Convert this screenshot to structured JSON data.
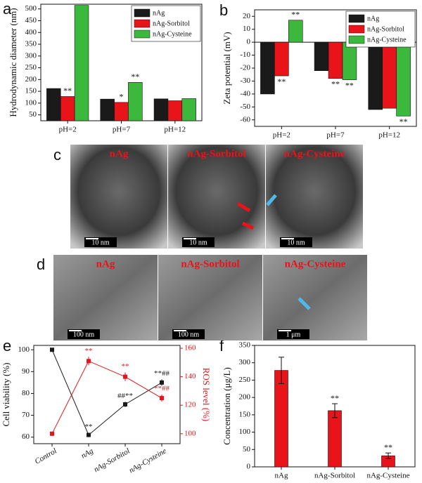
{
  "chart_data": [
    {
      "type": "bar",
      "panel": "a",
      "y_label": "Hydrodynamic diameter (nm)",
      "categories": [
        "pH=2",
        "pH=7",
        "pH=12"
      ],
      "series": [
        {
          "name": "nAg",
          "color": "#1a1a1a",
          "values": [
            162,
            117,
            118
          ],
          "significance": [
            null,
            null,
            null
          ]
        },
        {
          "name": "nAg-Sorbitol",
          "color": "#e8141a",
          "values": [
            128,
            103,
            110
          ],
          "significance": [
            "**",
            "*",
            null
          ]
        },
        {
          "name": "nAg-Cysteine",
          "color": "#3cb83c",
          "values": [
            515,
            188,
            119
          ],
          "significance": [
            "**",
            "**",
            null
          ]
        }
      ],
      "ylim": [
        25,
        520
      ],
      "yticks": [
        50,
        100,
        150,
        200,
        250,
        300,
        350,
        400,
        450,
        500
      ],
      "legend": "upper right"
    },
    {
      "type": "bar",
      "panel": "b",
      "y_label": "Zeta potential (mV)",
      "categories": [
        "pH=2",
        "pH=7",
        "pH=12"
      ],
      "series": [
        {
          "name": "nAg",
          "color": "#1a1a1a",
          "values": [
            -40,
            -22,
            -52
          ],
          "significance": [
            null,
            null,
            null
          ]
        },
        {
          "name": "nAg-Sorbitol",
          "color": "#e8141a",
          "values": [
            -26,
            -28,
            -51
          ],
          "significance": [
            "**",
            "**",
            null
          ]
        },
        {
          "name": "nAg-Cysteine",
          "color": "#3cb83c",
          "values": [
            17,
            -29,
            -57
          ],
          "significance": [
            "**",
            "**",
            "**"
          ]
        }
      ],
      "ylim": [
        -65,
        25
      ],
      "yticks": [
        -60,
        -50,
        -40,
        -30,
        -20,
        -10,
        0,
        10,
        20
      ],
      "legend": "upper right"
    },
    {
      "type": "line",
      "panel": "e",
      "y_label": "Cell viability (%)",
      "y2_label": "ROS level (%)",
      "categories": [
        "Control",
        "nAg",
        "nAg-Sorbitol",
        "nAg-Cysteine"
      ],
      "series": [
        {
          "color": "#1a1a1a",
          "values": [
            100,
            61,
            75,
            85
          ],
          "errors": [
            0.6,
            1,
            1.2,
            1.5
          ],
          "significance": [
            null,
            "**",
            "##**",
            "**##"
          ]
        },
        {
          "color": "#e8141a",
          "axis": "y2",
          "values": [
            100,
            151,
            140,
            125
          ],
          "errors": [
            1.5,
            3,
            3,
            2.5
          ],
          "significance": [
            null,
            "**",
            "**",
            "**##"
          ]
        }
      ],
      "ylim": [
        57,
        102
      ],
      "yticks": [
        60,
        70,
        80,
        90,
        100
      ],
      "y2lim": [
        93,
        162
      ],
      "y2ticks": [
        100,
        120,
        140,
        160
      ]
    },
    {
      "type": "bar",
      "panel": "f",
      "y_label": "Concentration (μg/L)",
      "categories": [
        "nAg",
        "nAg-Sorbitol",
        "nAg-Cysteine"
      ],
      "series": [
        {
          "color": "#e8141a",
          "values": [
            278,
            162,
            32
          ],
          "errors": [
            38,
            20,
            8
          ],
          "significance": [
            null,
            "**",
            "**"
          ]
        }
      ],
      "ylim": [
        0,
        350
      ],
      "yticks": [
        0,
        50,
        100,
        150,
        200,
        250,
        300,
        350
      ]
    }
  ],
  "figures": [
    {
      "panel": "c",
      "images": [
        {
          "label": "nAg",
          "scale": "10 nm"
        },
        {
          "label": "nAg-Sorbitol",
          "scale": "10 nm"
        },
        {
          "label": "nAg-Cysteine",
          "scale": "10 nm"
        }
      ]
    },
    {
      "panel": "d",
      "images": [
        {
          "label": "nAg",
          "scale": "100 nm"
        },
        {
          "label": "nAg-Sorbitol",
          "scale": "100 nm"
        },
        {
          "label": "nAg-Cysteine",
          "scale": "1 μm"
        }
      ]
    }
  ]
}
